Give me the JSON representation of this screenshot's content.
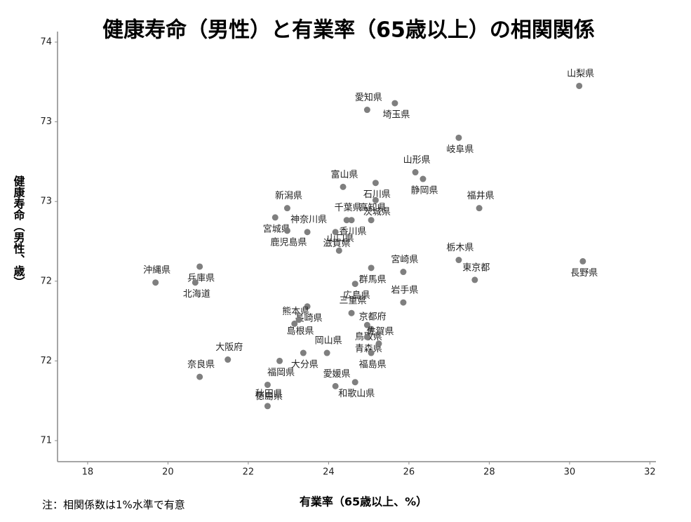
{
  "chart_data": {
    "type": "scatter",
    "title": "健康寿命（男性）と有業率（65歳以上）の相関関係",
    "x_label": "有業率（65歳以上、%）",
    "y_label": "健康寿命（男性、歳）",
    "note": "注：相関係数は1%水準で有意",
    "xlim": [
      17.25,
      32.15
    ],
    "ylim": [
      71,
      74
    ],
    "xticks": [
      18,
      20,
      22,
      24,
      26,
      28,
      30,
      32
    ],
    "yticks": [
      74,
      {
        "value": 73.4,
        "label": "73"
      },
      {
        "value": 72.8,
        "label": "73"
      },
      {
        "value": 72.2,
        "label": "72"
      },
      {
        "value": 71.6,
        "label": "72"
      },
      71
    ],
    "series": [
      {
        "color": "#7f7f7f",
        "labels": [
          "山梨県",
          "埼玉県",
          "愛知県",
          "岐阜県",
          "山形県",
          "静岡県",
          "富山県",
          "石川県",
          "福井県",
          "茨城県",
          "新潟県",
          "宮城県",
          "千葉県",
          "香川県",
          "高知県",
          "鹿児島県",
          "神奈川県",
          "滋賀県",
          "山口県",
          "兵庫県",
          "栃木県",
          "群馬県",
          "宮崎県",
          "長野県",
          "沖縄県",
          "北海道",
          "東京都",
          "広島県",
          "岩手県",
          "長崎県",
          "三重県",
          "島根県",
          "熊本県",
          "鳥取県",
          "京都府",
          "青森県",
          "佐賀県",
          "大分県",
          "岡山県",
          "福島県",
          "大阪府",
          "福岡県",
          "奈良県",
          "徳島県",
          "愛媛県",
          "和歌山県",
          "秋田県"
        ],
        "x": [
          30.24,
          25.65,
          24.96,
          27.24,
          26.16,
          26.35,
          24.36,
          25.17,
          27.75,
          25.17,
          22.97,
          22.67,
          24.45,
          24.57,
          25.06,
          22.97,
          23.47,
          24.17,
          24.26,
          20.79,
          27.24,
          25.06,
          25.86,
          30.33,
          19.69,
          20.68,
          27.64,
          24.66,
          25.86,
          23.47,
          24.57,
          23.26,
          23.15,
          24.96,
          25.06,
          24.96,
          25.25,
          23.37,
          23.96,
          25.06,
          21.49,
          22.78,
          20.79,
          22.48,
          24.17,
          24.66,
          22.48
        ],
        "y": [
          73.67,
          73.54,
          73.49,
          73.28,
          73.02,
          72.97,
          72.91,
          72.94,
          72.75,
          72.81,
          72.75,
          72.68,
          72.66,
          72.66,
          72.66,
          72.58,
          72.57,
          72.57,
          72.43,
          72.31,
          72.36,
          72.3,
          72.27,
          72.35,
          72.19,
          72.19,
          72.21,
          72.18,
          72.04,
          72.01,
          71.96,
          71.91,
          71.88,
          71.87,
          71.84,
          71.78,
          71.73,
          71.66,
          71.66,
          71.66,
          71.61,
          71.6,
          71.48,
          71.42,
          71.41,
          71.44,
          71.26
        ]
      }
    ]
  }
}
